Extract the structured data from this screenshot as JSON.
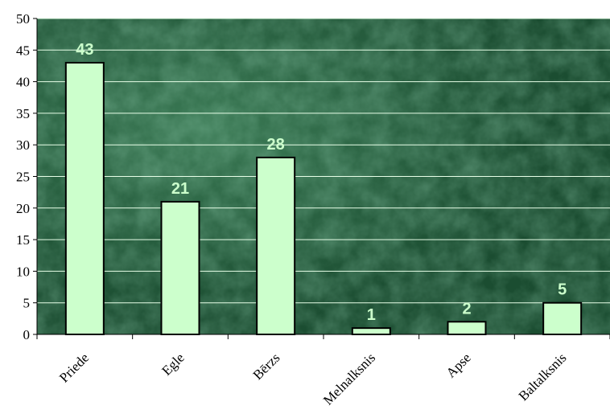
{
  "chart_data": {
    "type": "bar",
    "title": "",
    "xlabel": "",
    "ylabel": "",
    "categories": [
      "Priede",
      "Egle",
      "Bērzs",
      "Melnalksnis",
      "Apse",
      "Baltalksnis"
    ],
    "values": [
      43,
      21,
      28,
      1,
      2,
      5
    ],
    "ylim": [
      0,
      50
    ],
    "yticks": [
      0,
      5,
      10,
      15,
      20,
      25,
      30,
      35,
      40,
      45,
      50
    ],
    "grid": true,
    "legend": "none",
    "colors": {
      "bar_fill": "#ccffcc",
      "bar_stroke": "#000000",
      "data_label": "#ccffcc",
      "gridline": "#e8ffe8",
      "plot_background": "#1f5a3a"
    }
  }
}
